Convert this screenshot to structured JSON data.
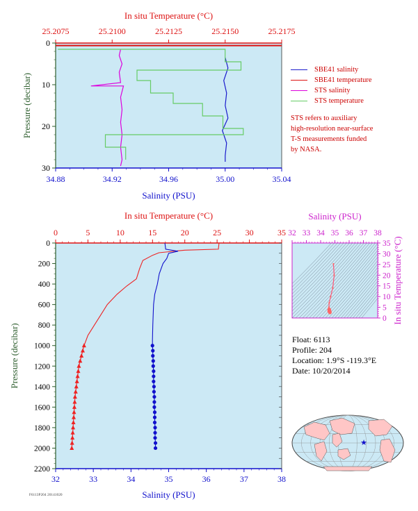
{
  "chart_data": [
    {
      "type": "line",
      "panel": "near-surface profile",
      "top_axis_label": "In situ Temperature (°C)",
      "top_ticks": [
        "25.2075",
        "25.2100",
        "25.2125",
        "25.2150",
        "25.2175"
      ],
      "top_range": [
        25.2075,
        25.2175
      ],
      "xlabel": "Salinity (PSU)",
      "x_ticks": [
        "34.88",
        "34.92",
        "34.96",
        "35.00",
        "35.04"
      ],
      "x_range": [
        34.88,
        35.04
      ],
      "ylabel": "Pressure (decibar)",
      "y_ticks": [
        "0",
        "10",
        "20",
        "30"
      ],
      "y_range": [
        0,
        30
      ],
      "grid": false,
      "legend_position": "right",
      "series": [
        {
          "name": "SBE41 salinity",
          "color": "#1a1acc",
          "axis": "salinity",
          "points": [
            [
              35.0,
              3.5
            ],
            [
              35.002,
              6
            ],
            [
              34.999,
              9
            ],
            [
              35.001,
              12
            ],
            [
              35.0,
              15
            ],
            [
              35.002,
              18
            ],
            [
              34.998,
              21
            ],
            [
              35.001,
              24
            ],
            [
              35.0,
              27
            ],
            [
              35.0,
              28.5
            ]
          ]
        },
        {
          "name": "SBE41 temperature",
          "color": "#dd1111",
          "axis": "temperature",
          "points": [
            [
              25.2075,
              0.6
            ],
            [
              25.2175,
              0.6
            ]
          ]
        },
        {
          "name": "STS salinity",
          "color": "#dd00dd",
          "axis": "salinity",
          "points": [
            [
              34.926,
              1.5
            ],
            [
              34.925,
              3
            ],
            [
              34.927,
              5
            ],
            [
              34.925,
              7
            ],
            [
              34.926,
              9.5
            ],
            [
              34.905,
              10.3
            ],
            [
              34.928,
              10.3
            ],
            [
              34.926,
              13
            ],
            [
              34.927,
              16
            ],
            [
              34.926,
              19
            ],
            [
              34.927,
              22
            ],
            [
              34.926,
              25
            ],
            [
              34.927,
              28
            ],
            [
              34.926,
              29.5
            ]
          ]
        },
        {
          "name": "STS temperature",
          "color": "#66cc66",
          "axis": "temperature",
          "points": [
            [
              25.2076,
              1.5
            ],
            [
              25.215,
              1.5
            ],
            [
              25.215,
              4.5
            ],
            [
              25.2157,
              4.5
            ],
            [
              25.2157,
              6.5
            ],
            [
              25.2111,
              6.5
            ],
            [
              25.2111,
              9
            ],
            [
              25.2117,
              9
            ],
            [
              25.2117,
              12
            ],
            [
              25.2127,
              12
            ],
            [
              25.2127,
              14.5
            ],
            [
              25.214,
              14.5
            ],
            [
              25.214,
              17.5
            ],
            [
              25.2149,
              17.5
            ],
            [
              25.2149,
              20.5
            ],
            [
              25.2158,
              20.5
            ],
            [
              25.2158,
              22
            ],
            [
              25.2097,
              22
            ],
            [
              25.2097,
              25
            ],
            [
              25.2106,
              25
            ],
            [
              25.2106,
              28
            ]
          ]
        }
      ],
      "legend": [
        "SBE41 salinity",
        "SBE41 temperature",
        "STS salinity",
        "STS temperature"
      ],
      "note": [
        "STS refers to auxiliary",
        "high-resolution near-surface",
        "T-S measurements funded",
        "by NASA."
      ]
    },
    {
      "type": "line",
      "panel": "full profile",
      "top_axis_label": "In situ Temperature (°C)",
      "top_ticks": [
        "0",
        "5",
        "10",
        "15",
        "20",
        "25",
        "30",
        "35"
      ],
      "top_range": [
        0,
        35
      ],
      "xlabel": "Salinity (PSU)",
      "x_ticks": [
        "32",
        "33",
        "34",
        "35",
        "36",
        "37",
        "38"
      ],
      "x_range": [
        32,
        38
      ],
      "ylabel": "Pressure (decibar)",
      "y_ticks": [
        "0",
        "200",
        "400",
        "600",
        "800",
        "1000",
        "1200",
        "1400",
        "1600",
        "1800",
        "2000",
        "2200"
      ],
      "y_range": [
        0,
        2200
      ],
      "grid": false,
      "series": [
        {
          "name": "temperature",
          "color": "#ee2222",
          "axis": "temperature",
          "marker": "triangle",
          "points": [
            [
              25.3,
              0
            ],
            [
              25.2,
              60
            ],
            [
              20,
              70
            ],
            [
              16,
              95
            ],
            [
              15,
              120
            ],
            [
              13.5,
              170
            ],
            [
              13,
              250
            ],
            [
              12.5,
              350
            ],
            [
              11,
              420
            ],
            [
              9.5,
              500
            ],
            [
              8,
              600
            ],
            [
              7,
              700
            ],
            [
              6,
              800
            ],
            [
              5,
              900
            ],
            [
              4.4,
              1000
            ],
            [
              4.2,
              1050
            ],
            [
              4.0,
              1100
            ],
            [
              3.8,
              1150
            ],
            [
              3.6,
              1200
            ],
            [
              3.5,
              1250
            ],
            [
              3.4,
              1300
            ],
            [
              3.3,
              1350
            ],
            [
              3.2,
              1400
            ],
            [
              3.1,
              1450
            ],
            [
              3.0,
              1500
            ],
            [
              2.95,
              1550
            ],
            [
              2.9,
              1600
            ],
            [
              2.85,
              1650
            ],
            [
              2.8,
              1700
            ],
            [
              2.75,
              1750
            ],
            [
              2.7,
              1800
            ],
            [
              2.65,
              1850
            ],
            [
              2.6,
              1900
            ],
            [
              2.55,
              1950
            ],
            [
              2.5,
              2000
            ]
          ]
        },
        {
          "name": "salinity",
          "color": "#1111cc",
          "axis": "salinity",
          "marker": "circle",
          "points": [
            [
              34.9,
              0
            ],
            [
              34.92,
              60
            ],
            [
              35.25,
              80
            ],
            [
              35.0,
              100
            ],
            [
              34.95,
              150
            ],
            [
              34.85,
              200
            ],
            [
              34.75,
              300
            ],
            [
              34.7,
              400
            ],
            [
              34.63,
              500
            ],
            [
              34.6,
              600
            ],
            [
              34.58,
              800
            ],
            [
              34.57,
              950
            ],
            [
              34.57,
              1000
            ],
            [
              34.58,
              1050
            ],
            [
              34.58,
              1100
            ],
            [
              34.59,
              1150
            ],
            [
              34.59,
              1200
            ],
            [
              34.6,
              1250
            ],
            [
              34.6,
              1300
            ],
            [
              34.6,
              1350
            ],
            [
              34.61,
              1400
            ],
            [
              34.61,
              1450
            ],
            [
              34.62,
              1500
            ],
            [
              34.62,
              1550
            ],
            [
              34.62,
              1600
            ],
            [
              34.63,
              1650
            ],
            [
              34.63,
              1700
            ],
            [
              34.63,
              1750
            ],
            [
              34.64,
              1800
            ],
            [
              34.64,
              1850
            ],
            [
              34.64,
              1900
            ],
            [
              34.65,
              1950
            ],
            [
              34.65,
              2000
            ]
          ]
        }
      ]
    },
    {
      "type": "scatter",
      "panel": "T-S diagram",
      "top_axis_label": "Salinity (PSU)",
      "top_ticks": [
        "32",
        "33",
        "34",
        "35",
        "36",
        "37",
        "38"
      ],
      "top_range": [
        32,
        38
      ],
      "right_axis_label": "In situ Temperature (°C)",
      "right_ticks": [
        "0",
        "5",
        "10",
        "15",
        "20",
        "25",
        "30",
        "35"
      ],
      "right_range": [
        0,
        35
      ],
      "points": [
        [
          34.9,
          25.2
        ],
        [
          34.95,
          20
        ],
        [
          34.85,
          14
        ],
        [
          34.7,
          10
        ],
        [
          34.6,
          7
        ],
        [
          34.58,
          5
        ],
        [
          34.6,
          4
        ],
        [
          34.62,
          3.5
        ],
        [
          34.65,
          2.6
        ],
        [
          34.64,
          2.9
        ],
        [
          34.6,
          3.2
        ]
      ]
    }
  ],
  "float_info": {
    "float": "Float:  6113",
    "profile": "Profile:  204",
    "location": "Location:  1.9°S  -119.3°E",
    "date": "Date:  10/20/2014"
  },
  "footer_id": "F6113P204 20141020",
  "colors": {
    "plot_bg": "#cce9f5",
    "temperature": "#dd1111",
    "salinity": "#1111cc",
    "sts_salinity": "#dd00dd",
    "sts_temperature": "#66cc66",
    "ts_axis": "#cc22cc",
    "pressure_axis": "#2e5e2e"
  }
}
